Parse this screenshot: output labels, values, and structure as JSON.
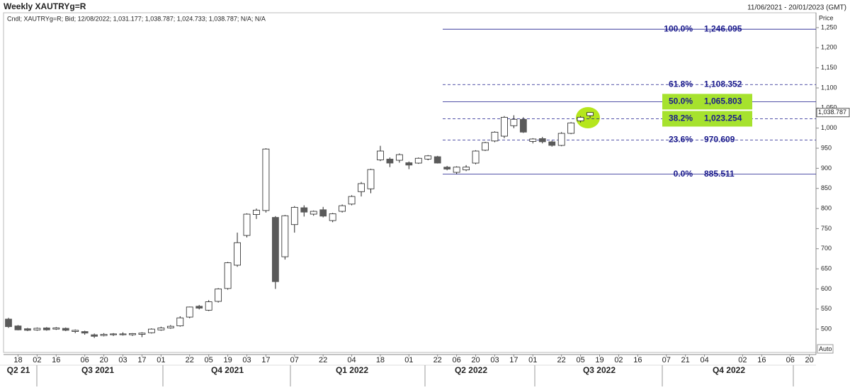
{
  "chart_data": {
    "type": "candlestick",
    "title": "Weekly XAUTRYg=R",
    "date_range": "11/06/2021 - 20/01/2023 (GMT)",
    "subtitle": "Cndl; XAUTRYg=R; Bid; 12/08/2022; 1,031.177; 1,038.787; 1,024.733; 1,038.787; N/A; N/A",
    "y_axis_label": "Price",
    "scale_mode": "Auto",
    "up_color": "#ffffff",
    "down_color": "#5a5a5a",
    "categories": [
      null,
      "18",
      null,
      "02",
      null,
      "16",
      null,
      null,
      "06",
      null,
      "20",
      null,
      "03",
      null,
      "17",
      null,
      "01",
      null,
      null,
      "22",
      null,
      "05",
      null,
      "19",
      null,
      "03",
      null,
      "17",
      null,
      null,
      "07",
      null,
      null,
      "22",
      null,
      null,
      "04",
      null,
      null,
      "18",
      null,
      null,
      "01",
      null,
      null,
      "22",
      null,
      "06",
      null,
      "20",
      null,
      "03",
      null,
      "17",
      null,
      "01",
      null,
      null,
      "22",
      null,
      "05",
      null,
      "19",
      null,
      "02",
      null,
      "16",
      null,
      null,
      "07",
      null,
      "21",
      null,
      "04",
      null,
      null,
      null,
      "02",
      null,
      "16",
      null,
      null,
      "06",
      null,
      "20",
      null
    ],
    "open": [
      525,
      508,
      501,
      498,
      503,
      500,
      502,
      494,
      494,
      486,
      484,
      486,
      486,
      486,
      487,
      491,
      498,
      503,
      508,
      530,
      557,
      547,
      569,
      601,
      659,
      733,
      785,
      795,
      778,
      680,
      760,
      802,
      786,
      797,
      770,
      793,
      811,
      842,
      849,
      921,
      923,
      920,
      914,
      913,
      923,
      929,
      903,
      890,
      896,
      913,
      945,
      968,
      980,
      1006,
      1022,
      967,
      974,
      966,
      957,
      987,
      1018,
      1031.177,
      null,
      null,
      null,
      null,
      null,
      null,
      null,
      null,
      null,
      null,
      null,
      null,
      null,
      null,
      null,
      null,
      null,
      null,
      null,
      null,
      null,
      null,
      null,
      null
    ],
    "high": [
      528,
      510,
      503,
      504,
      505,
      505,
      504,
      499,
      496,
      489,
      490,
      490,
      492,
      490,
      492,
      502,
      506,
      510,
      532,
      556,
      560,
      572,
      602,
      667,
      740,
      788,
      800,
      950,
      781,
      784,
      806,
      808,
      795,
      804,
      789,
      810,
      833,
      866,
      899,
      956,
      927,
      937,
      917,
      927,
      933,
      931,
      906,
      905,
      908,
      945,
      966,
      992,
      1030,
      1032,
      1027,
      975,
      978,
      969,
      990,
      1015,
      1030,
      1038.787,
      null,
      null,
      null,
      null,
      null,
      null,
      null,
      null,
      null,
      null,
      null,
      null,
      null,
      null,
      null,
      null,
      null,
      null,
      null,
      null,
      null,
      null,
      null,
      null
    ],
    "low": [
      503,
      497,
      495,
      496,
      496,
      498,
      495,
      490,
      486,
      478,
      482,
      483,
      484,
      483,
      480,
      489,
      496,
      501,
      506,
      527,
      549,
      545,
      566,
      598,
      655,
      728,
      774,
      790,
      600,
      673,
      740,
      780,
      782,
      778,
      766,
      790,
      808,
      830,
      838,
      918,
      903,
      914,
      898,
      911,
      920,
      912,
      895,
      886,
      893,
      910,
      943,
      965,
      975,
      1000,
      988,
      962,
      962,
      954,
      955,
      985,
      1014,
      1024.733,
      null,
      null,
      null,
      null,
      null,
      null,
      null,
      null,
      null,
      null,
      null,
      null,
      null,
      null,
      null,
      null,
      null,
      null,
      null,
      null,
      null,
      null,
      null,
      null
    ],
    "close": [
      506,
      498,
      497,
      502,
      498,
      503,
      497,
      497,
      490,
      482,
      487,
      488,
      488,
      489,
      490,
      500,
      503,
      507,
      528,
      555,
      552,
      568,
      600,
      665,
      715,
      786,
      796,
      948,
      618,
      782,
      803,
      791,
      793,
      781,
      787,
      807,
      830,
      862,
      897,
      943,
      913,
      934,
      908,
      925,
      931,
      913,
      898,
      903,
      903,
      943,
      964,
      990,
      1027,
      1022,
      990,
      973,
      966,
      957,
      987,
      1013,
      1027,
      1038.787,
      null,
      null,
      null,
      null,
      null,
      null,
      null,
      null,
      null,
      null,
      null,
      null,
      null,
      null,
      null,
      null,
      null,
      null,
      null,
      null,
      null,
      null,
      null,
      null
    ],
    "last_price": {
      "value": 1038.787,
      "label": "1,038.787"
    },
    "quarters": [
      "Q2 21",
      "Q3 2021",
      "Q4 2021",
      "Q1 2022",
      "Q2 2022",
      "Q3 2022",
      "Q4 2022"
    ],
    "ylim": [
      442,
      1287
    ],
    "yticks": [
      500,
      550,
      600,
      650,
      700,
      750,
      800,
      850,
      900,
      950,
      {
        "value": 1000,
        "label": "1,000"
      },
      {
        "value": 1050,
        "label": "1,050"
      },
      {
        "value": 1100,
        "label": "1,100"
      },
      {
        "value": 1150,
        "label": "1,150"
      },
      {
        "value": 1200,
        "label": "1,200"
      },
      {
        "value": 1250,
        "label": "1,250"
      }
    ],
    "fib_color": "#1a1a8c",
    "highlight_color": "#a6e22e",
    "fib_levels": [
      {
        "label": "100.0%",
        "value": 1246.095,
        "value_label": "1,246.095",
        "dashed": false,
        "highlight": false
      },
      {
        "label": "61.8%",
        "value": 1108.352,
        "value_label": "1,108.352",
        "dashed": true,
        "highlight": false
      },
      {
        "label": "50.0%",
        "value": 1065.803,
        "value_label": "1,065.803",
        "dashed": false,
        "highlight": true
      },
      {
        "label": "38.2%",
        "value": 1023.254,
        "value_label": "1,023.254",
        "dashed": true,
        "highlight": true
      },
      {
        "label": "23.6%",
        "value": 970.609,
        "value_label": "970.609",
        "dashed": true,
        "highlight": false
      },
      {
        "label": "0.0%",
        "value": 885.511,
        "value_label": "885.511",
        "dashed": false,
        "highlight": false
      }
    ]
  }
}
